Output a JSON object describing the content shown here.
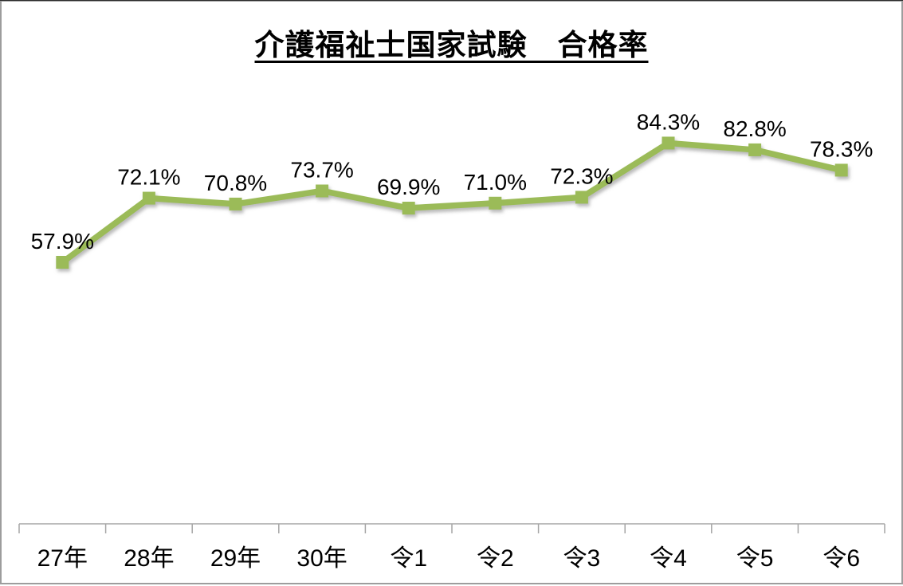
{
  "chart_data": {
    "type": "line",
    "title": "介護福祉士国家試験　合格率",
    "categories": [
      "27年",
      "28年",
      "29年",
      "30年",
      "令1",
      "令2",
      "令3",
      "令4",
      "令5",
      "令6"
    ],
    "series": [
      {
        "name": "合格率",
        "values": [
          57.9,
          72.1,
          70.8,
          73.7,
          69.9,
          71.0,
          72.3,
          84.3,
          82.8,
          78.3
        ]
      }
    ],
    "point_labels": [
      "57.9%",
      "72.1%",
      "70.8%",
      "73.7%",
      "69.9%",
      "71.0%",
      "72.3%",
      "84.3%",
      "82.8%",
      "78.3%"
    ],
    "xlabel": "",
    "ylabel": "",
    "ylim": [
      0,
      100
    ],
    "grid": false,
    "legend": "none",
    "marker": "square",
    "line_color": "#9bbb59",
    "axis_color": "#a6a6a6",
    "text_color": "#000000",
    "background": "#ffffff"
  }
}
